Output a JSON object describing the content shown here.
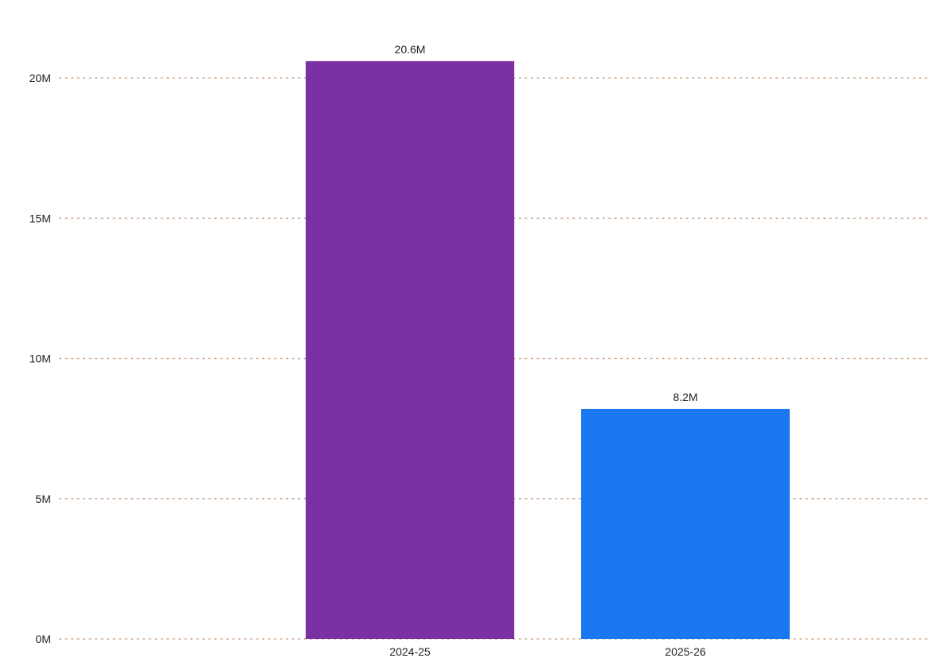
{
  "chart_data": {
    "type": "bar",
    "categories": [
      "2024-25",
      "2025-26"
    ],
    "values": [
      20600000,
      8200000
    ],
    "data_labels": [
      "20.6M",
      "8.2M"
    ],
    "bar_colors": [
      "#7b31a3",
      "#1a77f0"
    ],
    "yticks": [
      {
        "value": 0,
        "label": "0M"
      },
      {
        "value": 5000000,
        "label": "5M"
      },
      {
        "value": 10000000,
        "label": "10M"
      },
      {
        "value": 15000000,
        "label": "15M"
      },
      {
        "value": 20000000,
        "label": "20M"
      }
    ],
    "ylim": [
      0,
      20000000
    ],
    "title": "",
    "xlabel": "",
    "ylabel": "",
    "grid": true,
    "gridline_color": "#c8a58c"
  }
}
